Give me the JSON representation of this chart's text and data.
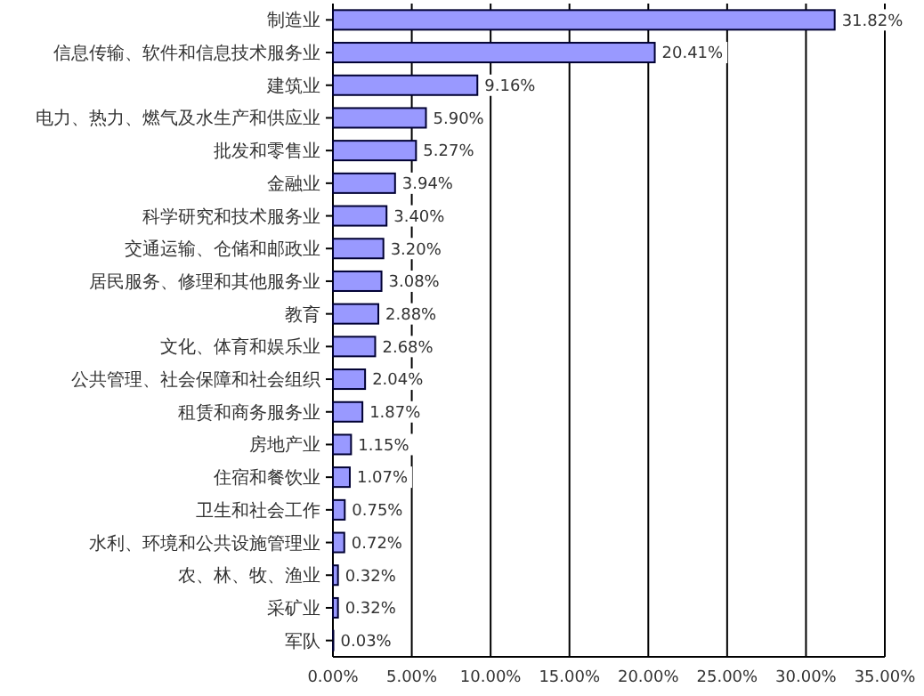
{
  "chart_data": {
    "type": "bar",
    "orientation": "horizontal",
    "categories": [
      "制造业",
      "信息传输、软件和信息技术服务业",
      "建筑业",
      "电力、热力、燃气及水生产和供应业",
      "批发和零售业",
      "金融业",
      "科学研究和技术服务业",
      "交通运输、仓储和邮政业",
      "居民服务、修理和其他服务业",
      "教育",
      "文化、体育和娱乐业",
      "公共管理、社会保障和社会组织",
      "租赁和商务服务业",
      "房地产业",
      "住宿和餐饮业",
      "卫生和社会工作",
      "水利、环境和公共设施管理业",
      "农、林、牧、渔业",
      "采矿业",
      "军队"
    ],
    "values": [
      31.82,
      20.41,
      9.16,
      5.9,
      5.27,
      3.94,
      3.4,
      3.2,
      3.08,
      2.88,
      2.68,
      2.04,
      1.87,
      1.15,
      1.07,
      0.75,
      0.72,
      0.32,
      0.32,
      0.03
    ],
    "value_labels": [
      "31.82%",
      "20.41%",
      "9.16%",
      "5.90%",
      "5.27%",
      "3.94%",
      "3.40%",
      "3.20%",
      "3.08%",
      "2.88%",
      "2.68%",
      "2.04%",
      "1.87%",
      "1.15%",
      "1.07%",
      "0.75%",
      "0.72%",
      "0.32%",
      "0.32%",
      "0.03%"
    ],
    "color": "#9999ff",
    "xlim": [
      0,
      35
    ],
    "xticks": [
      {
        "value": 0,
        "label": "0.00%"
      },
      {
        "value": 5,
        "label": "5.00%"
      },
      {
        "value": 10,
        "label": "10.00%"
      },
      {
        "value": 15,
        "label": "15.00%"
      },
      {
        "value": 20,
        "label": "20.00%"
      },
      {
        "value": 25,
        "label": "25.00%"
      },
      {
        "value": 30,
        "label": "30.00%"
      },
      {
        "value": 35,
        "label": "35.00%"
      }
    ],
    "grid": "x"
  }
}
